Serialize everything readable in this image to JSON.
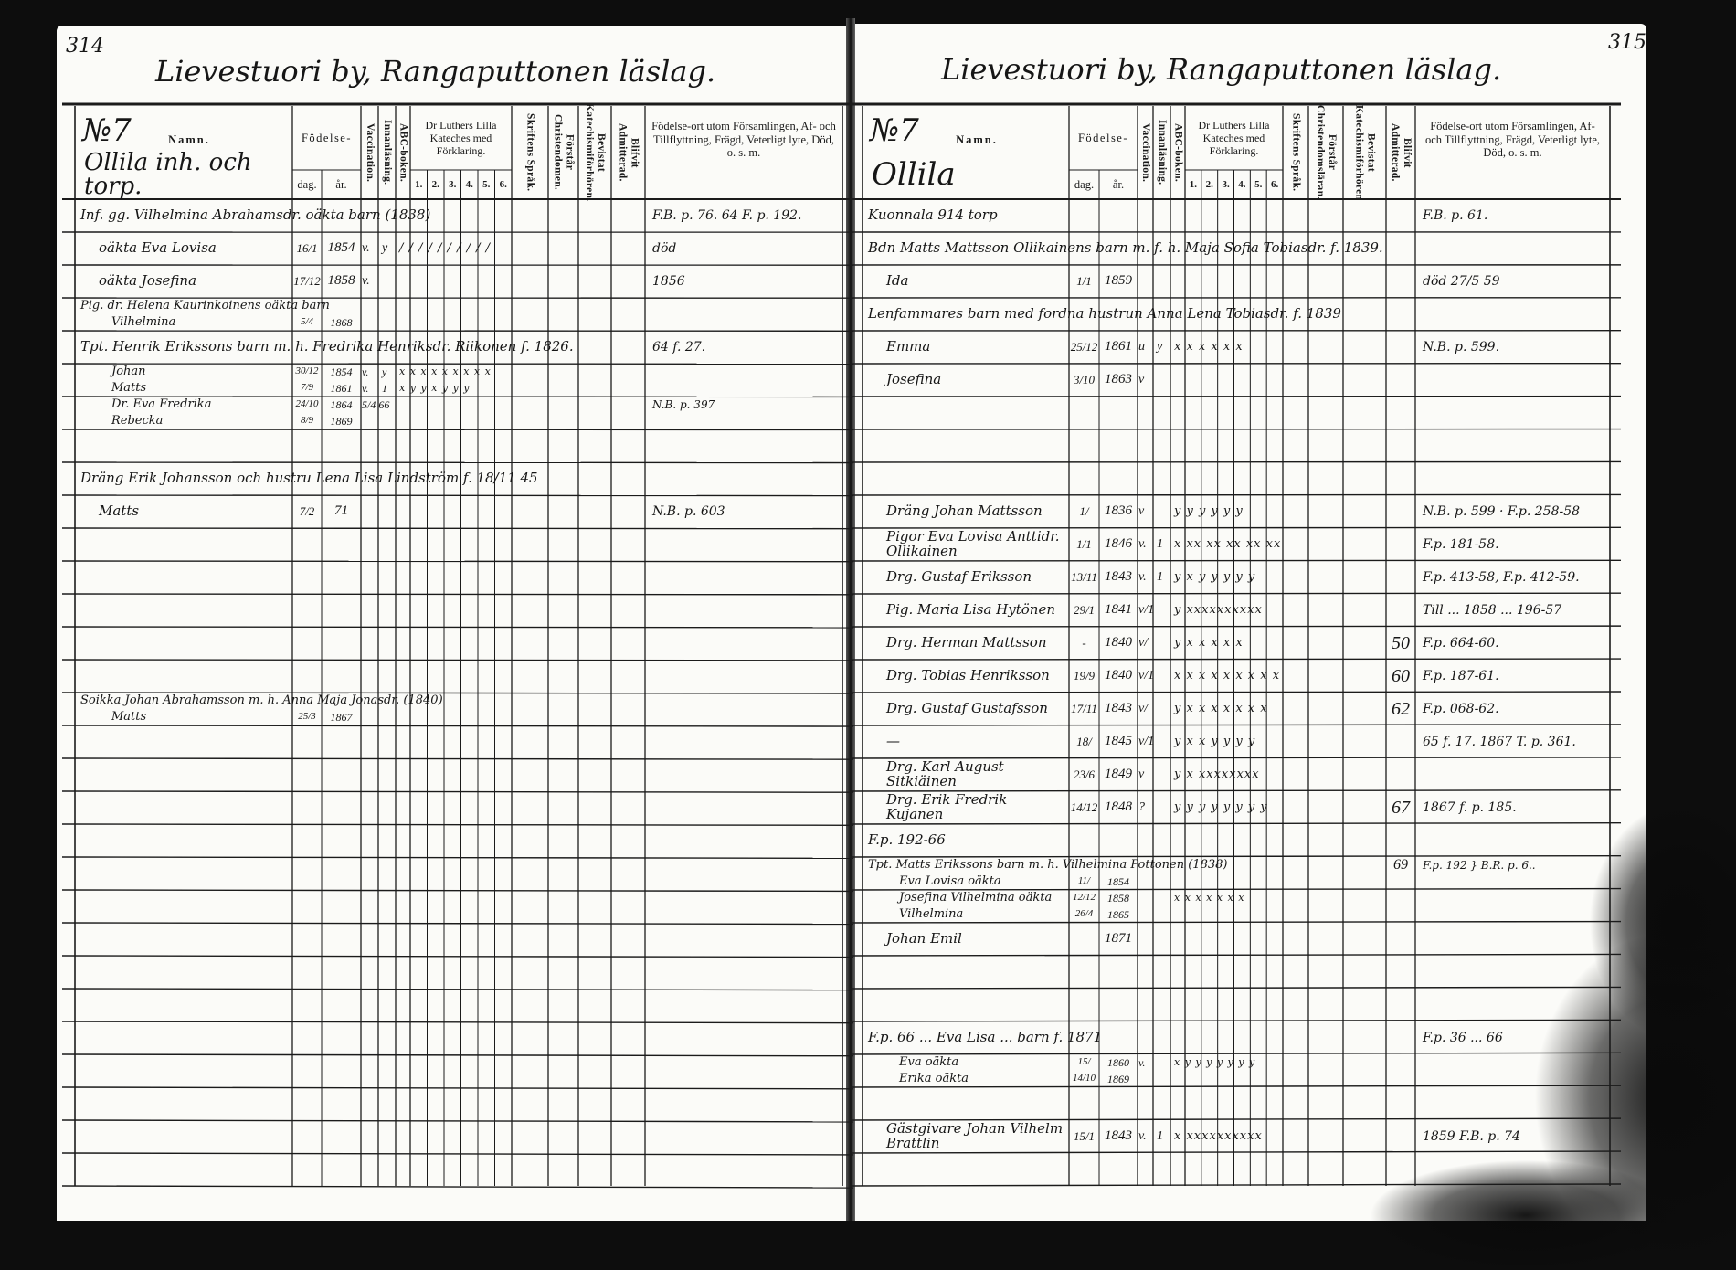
{
  "pages": [
    {
      "page_number": "314",
      "title": "Lievestuori by, Rangaputtonen läslag.",
      "household_no": "№7",
      "farm": "Ollila inh. och torp.",
      "headers": {
        "name": "Namn.",
        "birth": "Födelse-",
        "day": "dag.",
        "year": "år.",
        "vaccination": "Vaccination.",
        "reading": "Innanläsning.",
        "abc": "ABC-boken.",
        "catechism": "Dr Luthers Lilla Kateches med Förklaring.",
        "catechism_parts": [
          "1.",
          "2.",
          "3.",
          "4.",
          "5.",
          "6."
        ],
        "scripture": "Skriftens Språk.",
        "understands": "Förstår Christendomen.",
        "attended": "Bevistat Katechismiförhören.",
        "admitted": "Blifvit Admitterad.",
        "remarks": "Födelse-ort utom Församlingen, Af- och Tillflyttning, Frägd, Veterligt lyte, Död, o. s. m."
      },
      "rows": [
        [
          {
            "note": "Inf. gg. Vilhelmina Abrahamsdr. oäkta barn (1838)",
            "remarks": "F.B. p. 76. 64 F. p. 192."
          }
        ],
        [
          {
            "name": "oäkta Eva Lovisa",
            "day": "16/1",
            "year": "1854",
            "vacc": "v.",
            "inn": "y",
            "marks": "/ / / / / / / / / /",
            "remarks": "död"
          }
        ],
        [
          {
            "name": "oäkta Josefina",
            "day": "17/12",
            "year": "1858",
            "vacc": "v.",
            "remarks": "1856"
          }
        ],
        [
          {
            "note": "Pig. dr. Helena Kaurinkoinens oäkta barn"
          },
          {
            "name": "Vilhelmina",
            "day": "5/4",
            "year": "1868"
          }
        ],
        [
          {
            "note": "Tpt. Henrik Erikssons barn m. h. Fredrika Henriksdr. Riikonen f. 1826.",
            "remarks": "64 f. 27."
          }
        ],
        [
          {
            "name": "Johan",
            "day": "30/12",
            "year": "1854",
            "vacc": "v.",
            "inn": "y",
            "marks": "x x x x x x x x x"
          },
          {
            "name": "Matts",
            "day": "7/9",
            "year": "1861",
            "vacc": "v.",
            "inn": "1",
            "marks": "x y y x y y y"
          }
        ],
        [
          {
            "name": "Dr. Eva Fredrika",
            "day": "24/10",
            "year": "1864",
            "vacc": "5/4 66",
            "remarks": "N.B. p. 397"
          },
          {
            "name": "Rebecka",
            "day": "8/9",
            "year": "1869"
          }
        ],
        [],
        [
          {
            "note": "Dräng Erik Johansson och hustru Lena Lisa Lindström f. 18/11 45"
          }
        ],
        [
          {
            "name": "Matts",
            "day": "7/2",
            "year": "71",
            "remarks": "N.B. p. 603"
          }
        ],
        [],
        [],
        [],
        [],
        [],
        [
          {
            "note": "Soikka Johan Abrahamsson m. h. Anna Maja Jonasdr. (1840)"
          },
          {
            "name": "Matts",
            "day": "25/3",
            "year": "1867"
          }
        ],
        [],
        [],
        [],
        [],
        [],
        [],
        [],
        [],
        [],
        [],
        [],
        [],
        [],
        []
      ]
    },
    {
      "page_number": "315",
      "title": "Lievestuori by, Rangaputtonen läslag.",
      "household_no": "№7",
      "farm": "Ollila",
      "headers": {
        "name": "Namn.",
        "birth": "Födelse-",
        "day": "dag.",
        "year": "år.",
        "vaccination": "Vaccination.",
        "reading": "Innanläsning.",
        "abc": "ABC-boken.",
        "catechism": "Dr Luthers Lilla Kateches med Förklaring.",
        "catechism_parts": [
          "1.",
          "2.",
          "3.",
          "4.",
          "5.",
          "6."
        ],
        "scripture": "Skriftens Språk.",
        "understands": "Förstår Christendomsläran.",
        "attended": "Bevistat Katechismiförhören",
        "admitted": "Blifvit Admitterad.",
        "remarks": "Födelse-ort utom Församlingen, Af- och Tillflyttning, Frägd, Veterligt lyte, Död, o. s. m."
      },
      "rows": [
        [
          {
            "note": "Kuonnala 914 torp",
            "remarks": "F.B. p. 61."
          }
        ],
        [
          {
            "note": "Bdn Matts Mattsson Ollikainens barn m. f. h. Maja Sofia Tobiasdr. f. 1839."
          }
        ],
        [
          {
            "name": "Ida",
            "day": "1/1",
            "year": "1859",
            "remarks": "död 27/5 59"
          }
        ],
        [
          {
            "note": "Lenfammares barn med fordna hustrun Anna Lena Tobiasdr. f. 1839"
          }
        ],
        [
          {
            "name": "Emma",
            "day": "25/12",
            "year": "1861",
            "vacc": "u",
            "inn": "y",
            "marks": "x x x x x x",
            "remarks": "N.B. p. 599."
          }
        ],
        [
          {
            "name": "Josefina",
            "day": "3/10",
            "year": "1863",
            "vacc": "v"
          }
        ],
        [],
        [],
        [],
        [
          {
            "name": "Dräng Johan Mattsson",
            "day": "1/",
            "year": "1836",
            "vacc": "v",
            "marks": "y y y y y y",
            "remarks": "N.B. p. 599 · F.p. 258-58"
          }
        ],
        [
          {
            "name": "Pigor Eva Lovisa Anttidr. Ollikainen",
            "day": "1/1",
            "year": "1846",
            "vacc": "v.",
            "inn": "1",
            "marks": "x xx xx xx xx xx",
            "remarks": "F.p. 181-58."
          }
        ],
        [
          {
            "name": "Drg. Gustaf Eriksson",
            "day": "13/11",
            "year": "1843",
            "vacc": "v.",
            "inn": "1",
            "marks": "y x y y y y y",
            "remarks": "F.p. 413-58, F.p. 412-59."
          }
        ],
        [
          {
            "name": "Pig. Maria Lisa Hytönen",
            "day": "29/1",
            "year": "1841",
            "vacc": "v/1",
            "marks": "y xxxxxxxxxx",
            "remarks": "Till ... 1858 ... 196-57"
          }
        ],
        [
          {
            "name": "Drg. Herman Mattsson",
            "day": "-",
            "year": "1840",
            "vacc": "v/",
            "marks": "y x x x x x",
            "admitted": "50",
            "remarks": "F.p. 664-60."
          }
        ],
        [
          {
            "name": "Drg. Tobias Henriksson",
            "day": "19/9",
            "year": "1840",
            "vacc": "v/1",
            "marks": "x x x x x x x x x",
            "admitted": "60",
            "remarks": "F.p. 187-61."
          }
        ],
        [
          {
            "name": "Drg. Gustaf Gustafsson",
            "day": "17/11",
            "year": "1843",
            "vacc": "v/",
            "marks": "y x x x x x x x",
            "admitted": "62",
            "remarks": "F.p. 068-62."
          }
        ],
        [
          {
            "name": "—",
            "day": "18/",
            "year": "1845",
            "vacc": "v/1",
            "marks": "y x x y y y y",
            "remarks": "65 f. 17. 1867 T. p. 361."
          }
        ],
        [
          {
            "name": "Drg. Karl August Sitkiäinen",
            "day": "23/6",
            "year": "1849",
            "vacc": "v",
            "marks": "y x xxxxxxxx"
          }
        ],
        [
          {
            "name": "Drg. Erik Fredrik Kujanen",
            "day": "14/12",
            "year": "1848",
            "vacc": "?",
            "marks": "y y y y y y y y",
            "admitted": "67",
            "remarks": "1867 f. p. 185."
          }
        ],
        [
          {
            "note": "F.p. 192-66"
          }
        ],
        [
          {
            "note": "Tpt. Matts Erikssons barn m. h. Vilhelmina Pottonen (1838)",
            "admitted": "69",
            "remarks": "F.p. 192 } B.R. p. 6.."
          },
          {
            "name": "Eva Lovisa oäkta",
            "day": "11/",
            "year": "1854"
          }
        ],
        [
          {
            "name": "Josefina Vilhelmina oäkta",
            "day": "12/12",
            "year": "1858",
            "marks": "x x x x x x x"
          },
          {
            "name": "Vilhelmina",
            "day": "26/4",
            "year": "1865"
          }
        ],
        [
          {
            "name": "Johan Emil",
            "year": "1871"
          }
        ],
        [],
        [],
        [
          {
            "note": "F.p. 66 ... Eva Lisa ... barn f. 1871",
            "remarks": "F.p. 36 ... 66"
          }
        ],
        [
          {
            "name": "Eva oäkta",
            "day": "15/",
            "year": "1860",
            "vacc": "v.",
            "marks": "x y y y y y y y"
          },
          {
            "name": "Erika oäkta",
            "day": "14/10",
            "year": "1869"
          }
        ],
        [],
        [
          {
            "name": "Gästgivare Johan Vilhelm Brattlin",
            "day": "15/1",
            "year": "1843",
            "vacc": "v.",
            "inn": "1",
            "marks": "x xxxxxxxxxx",
            "remarks": "1859 F.B. p. 74"
          }
        ],
        []
      ]
    }
  ]
}
